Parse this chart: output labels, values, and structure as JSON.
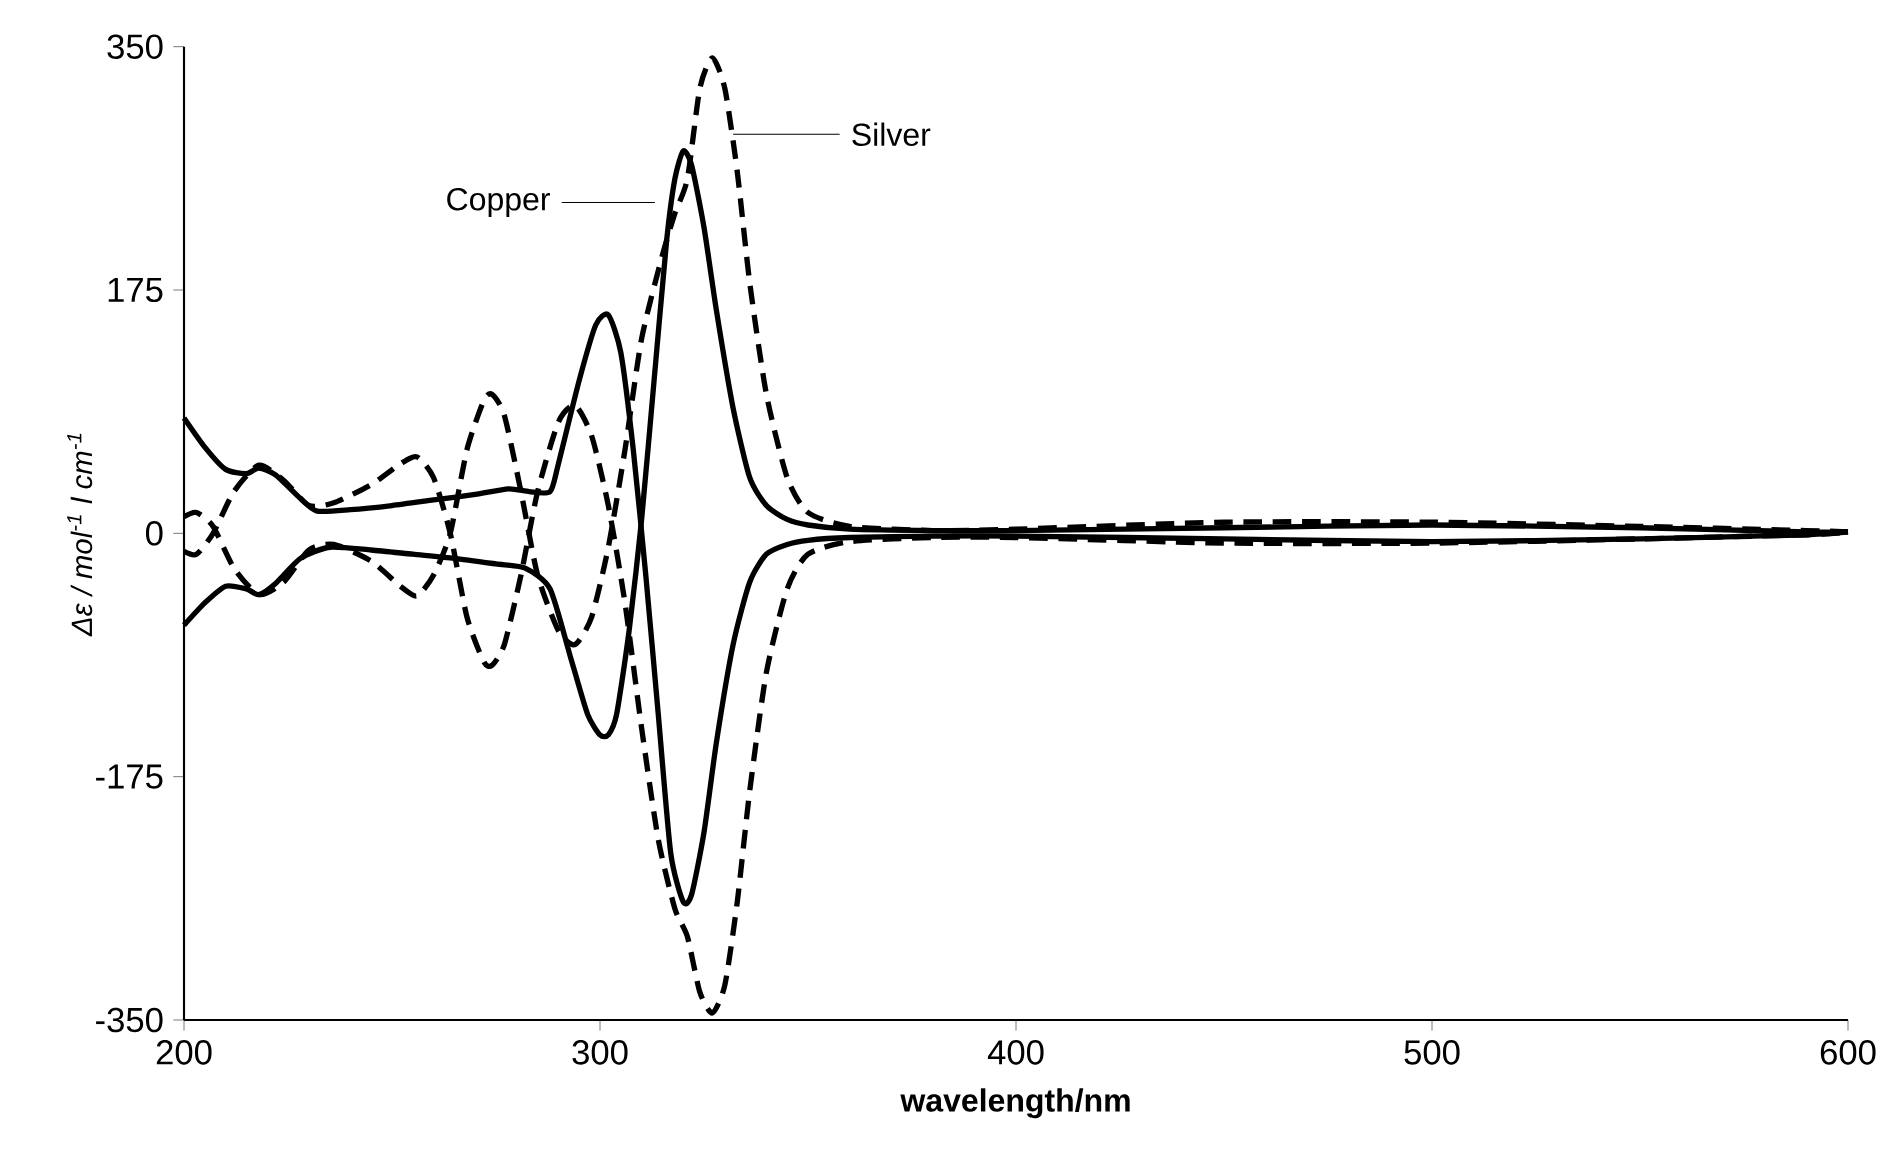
{
  "chart_data": {
    "type": "line",
    "xlabel": "wavelength/nm",
    "ylabel": "Δε / mol$^{-1}$ l cm$^{-1}$",
    "xlim": [
      200,
      600
    ],
    "xticks": [
      200,
      300,
      400,
      500,
      600
    ],
    "ylim": [
      -350,
      350
    ],
    "yticks": [
      -350,
      -175,
      0,
      175,
      350
    ],
    "grid": false,
    "marker": "none",
    "annotations": [
      "Copper",
      "Silver"
    ],
    "series": [
      {
        "color": "#000000",
        "line_style": "solid",
        "x": [
          200,
          205,
          210,
          215,
          218,
          222,
          228,
          235,
          245,
          255,
          265,
          275,
          282,
          288,
          293,
          297,
          300,
          302,
          304,
          307,
          310,
          313,
          316,
          318,
          320,
          322,
          325,
          328,
          332,
          336,
          340,
          345,
          350,
          360,
          380,
          400,
          450,
          500,
          550,
          590,
          600
        ],
        "values": [
          -66,
          -50,
          -38,
          -40,
          -44,
          -36,
          -18,
          -10,
          -12,
          -15,
          -18,
          -22,
          -25,
          -40,
          -90,
          -130,
          -145,
          -145,
          -130,
          -70,
          10,
          110,
          210,
          255,
          275,
          265,
          220,
          160,
          90,
          40,
          20,
          10,
          6,
          3,
          2,
          2,
          4,
          6,
          4,
          1,
          1
        ]
      },
      {
        "color": "#000000",
        "line_style": "solid",
        "x": [
          200,
          205,
          210,
          215,
          218,
          222,
          228,
          232,
          240,
          250,
          260,
          270,
          278,
          283,
          288,
          290,
          295,
          299,
          302,
          305,
          308,
          311,
          314,
          317,
          320,
          322,
          325,
          328,
          332,
          336,
          340,
          345,
          350,
          360,
          380,
          400,
          450,
          500,
          550,
          590,
          600
        ],
        "values": [
          83,
          62,
          46,
          43,
          47,
          42,
          25,
          16,
          17,
          20,
          24,
          28,
          32,
          30,
          30,
          50,
          110,
          150,
          157,
          130,
          60,
          -30,
          -130,
          -230,
          -265,
          -260,
          -215,
          -150,
          -80,
          -35,
          -15,
          -8,
          -5,
          -3,
          -2,
          -2,
          -4,
          -6,
          -4,
          -1,
          1
        ]
      },
      {
        "color": "#000000",
        "line_style": "dashed",
        "x": [
          200,
          203,
          207,
          212,
          218,
          224,
          230,
          236,
          245,
          252,
          256,
          260,
          264,
          268,
          272,
          274,
          277,
          281,
          285,
          290,
          294,
          298,
          302,
          306,
          310,
          315,
          318,
          321,
          324,
          327,
          330,
          333,
          336,
          340,
          345,
          350,
          360,
          380,
          400,
          450,
          500,
          550,
          590,
          600
        ],
        "values": [
          12,
          15,
          5,
          -25,
          -44,
          -35,
          -12,
          -8,
          -20,
          -38,
          -45,
          -30,
          0,
          60,
          95,
          100,
          85,
          30,
          -30,
          -70,
          -80,
          -60,
          -10,
          60,
          140,
          200,
          230,
          255,
          320,
          342,
          320,
          260,
          180,
          100,
          40,
          15,
          5,
          2,
          3,
          8,
          8,
          5,
          2,
          1
        ]
      },
      {
        "color": "#000000",
        "line_style": "dashed",
        "x": [
          200,
          203,
          207,
          212,
          218,
          224,
          230,
          236,
          245,
          252,
          256,
          260,
          264,
          268,
          272,
          274,
          277,
          281,
          285,
          290,
          294,
          298,
          302,
          306,
          310,
          314,
          318,
          321,
          324,
          327,
          330,
          333,
          336,
          340,
          345,
          350,
          360,
          380,
          400,
          450,
          500,
          550,
          590,
          600
        ],
        "values": [
          -13,
          -15,
          0,
          30,
          49,
          38,
          20,
          22,
          35,
          50,
          55,
          40,
          0,
          -60,
          -92,
          -95,
          -80,
          -30,
          30,
          80,
          92,
          70,
          20,
          -50,
          -140,
          -220,
          -270,
          -290,
          -330,
          -345,
          -325,
          -265,
          -185,
          -100,
          -40,
          -15,
          -6,
          -3,
          -3,
          -7,
          -7,
          -4,
          -1,
          1
        ]
      }
    ]
  }
}
